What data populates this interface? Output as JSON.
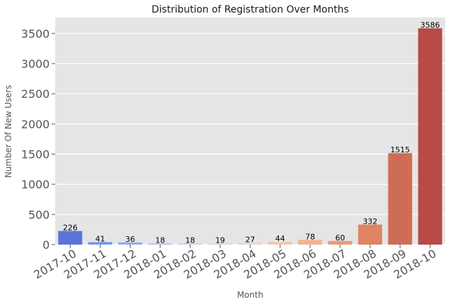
{
  "chart_data": {
    "type": "bar",
    "title": "Distribution of Registration Over Months",
    "xlabel": "Month",
    "ylabel": "Number Of New Users",
    "categories": [
      "2017-10",
      "2017-11",
      "2017-12",
      "2018-01",
      "2018-02",
      "2018-03",
      "2018-04",
      "2018-05",
      "2018-06",
      "2018-07",
      "2018-08",
      "2018-09",
      "2018-10"
    ],
    "values": [
      226,
      41,
      36,
      18,
      18,
      19,
      27,
      44,
      78,
      60,
      332,
      1515,
      3586
    ],
    "colors": [
      "#5a73d6",
      "#7393ee",
      "#8caaf6",
      "#a5bdf9",
      "#bfcdf6",
      "#d4d9e6",
      "#e6d7ca",
      "#f2c6ad",
      "#f4b193",
      "#eb9a78",
      "#e08463",
      "#cf6c55",
      "#b84a48"
    ],
    "yticks": [
      0,
      500,
      1000,
      1500,
      2000,
      2500,
      3000,
      3500
    ],
    "ylim": [
      0,
      3765
    ],
    "grid": true,
    "background": "#e5e5e5"
  }
}
